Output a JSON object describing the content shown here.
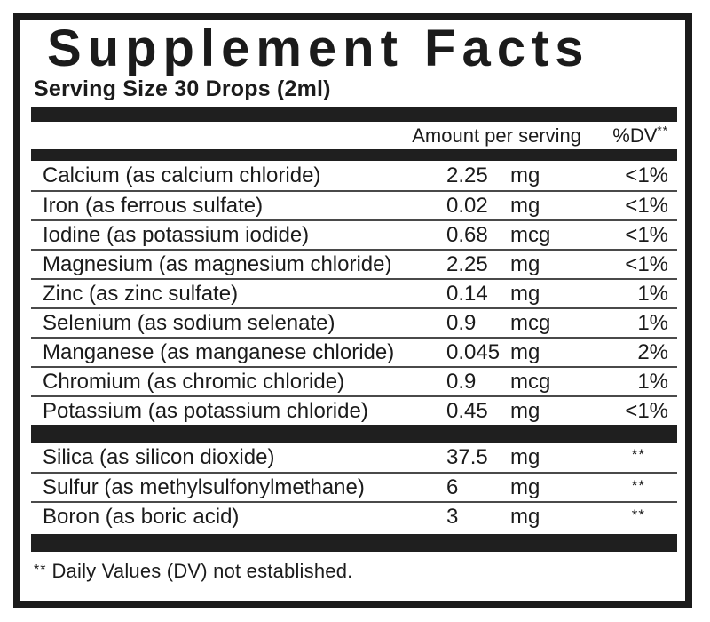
{
  "label": {
    "title": "Supplement Facts",
    "serving_size": "Serving Size 30 Drops (2ml)",
    "columns": {
      "amount": "Amount per serving",
      "dv": "%DV",
      "dv_sup": "**"
    },
    "sections": [
      {
        "rows": [
          {
            "name": "Calcium (as calcium chloride)",
            "amount": "2.25",
            "unit": "mg",
            "dv": "<1%"
          },
          {
            "name": "Iron (as ferrous sulfate)",
            "amount": "0.02",
            "unit": "mg",
            "dv": "<1%"
          },
          {
            "name": "Iodine (as potassium iodide)",
            "amount": "0.68",
            "unit": "mcg",
            "dv": "<1%"
          },
          {
            "name": "Magnesium (as magnesium chloride)",
            "amount": "2.25",
            "unit": "mg",
            "dv": "<1%"
          },
          {
            "name": "Zinc (as zinc sulfate)",
            "amount": "0.14",
            "unit": "mg",
            "dv": "1%"
          },
          {
            "name": "Selenium (as sodium selenate)",
            "amount": "0.9",
            "unit": "mcg",
            "dv": "1%"
          },
          {
            "name": "Manganese (as manganese chloride)",
            "amount": "0.045",
            "unit": "mg",
            "dv": "2%"
          },
          {
            "name": "Chromium (as chromic chloride)",
            "amount": "0.9",
            "unit": "mcg",
            "dv": "1%"
          },
          {
            "name": "Potassium (as potassium chloride)",
            "amount": "0.45",
            "unit": "mg",
            "dv": "<1%"
          }
        ]
      },
      {
        "rows": [
          {
            "name": "Silica (as silicon dioxide)",
            "amount": "37.5",
            "unit": "mg",
            "dv": "**"
          },
          {
            "name": "Sulfur (as methylsulfonylmethane)",
            "amount": "6",
            "unit": "mg",
            "dv": "**"
          },
          {
            "name": "Boron (as boric acid)",
            "amount": "3",
            "unit": "mg",
            "dv": "**"
          }
        ]
      }
    ],
    "footnote": {
      "marker": "**",
      "text": "Daily Values (DV) not established."
    },
    "colors": {
      "ink": "#1b1b1b",
      "bar": "#1f1f1f",
      "separator": "#4a4a4a",
      "background": "#ffffff"
    }
  }
}
